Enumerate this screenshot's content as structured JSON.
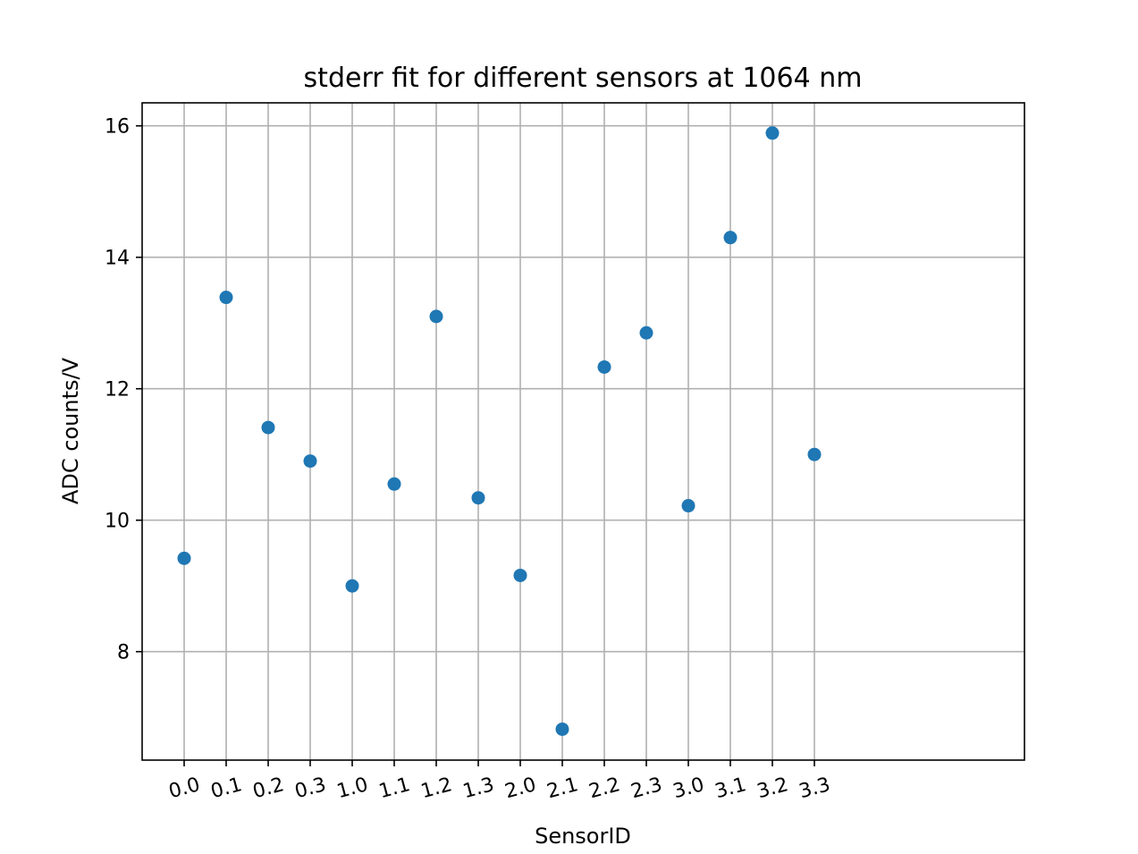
{
  "chart_data": {
    "type": "scatter",
    "title": "stderr fit for different sensors at 1064 nm",
    "xlabel": "SensorID",
    "ylabel": "ADC counts/V",
    "categories": [
      "0.0",
      "0.1",
      "0.2",
      "0.3",
      "1.0",
      "1.1",
      "1.2",
      "1.3",
      "2.0",
      "2.1",
      "2.2",
      "2.3",
      "3.0",
      "3.1",
      "3.2",
      "3.3"
    ],
    "series": [
      {
        "values": [
          9.42,
          13.39,
          11.41,
          10.9,
          9.0,
          10.55,
          13.1,
          10.34,
          9.16,
          6.82,
          12.33,
          12.85,
          10.22,
          14.3,
          15.89,
          11.0
        ]
      }
    ],
    "xlim": [
      -1,
      20
    ],
    "ylim": [
      6.35,
      16.35
    ],
    "yticks": [
      8,
      10,
      12,
      14,
      16
    ],
    "grid": true,
    "marker_color": "#1f77b4"
  }
}
